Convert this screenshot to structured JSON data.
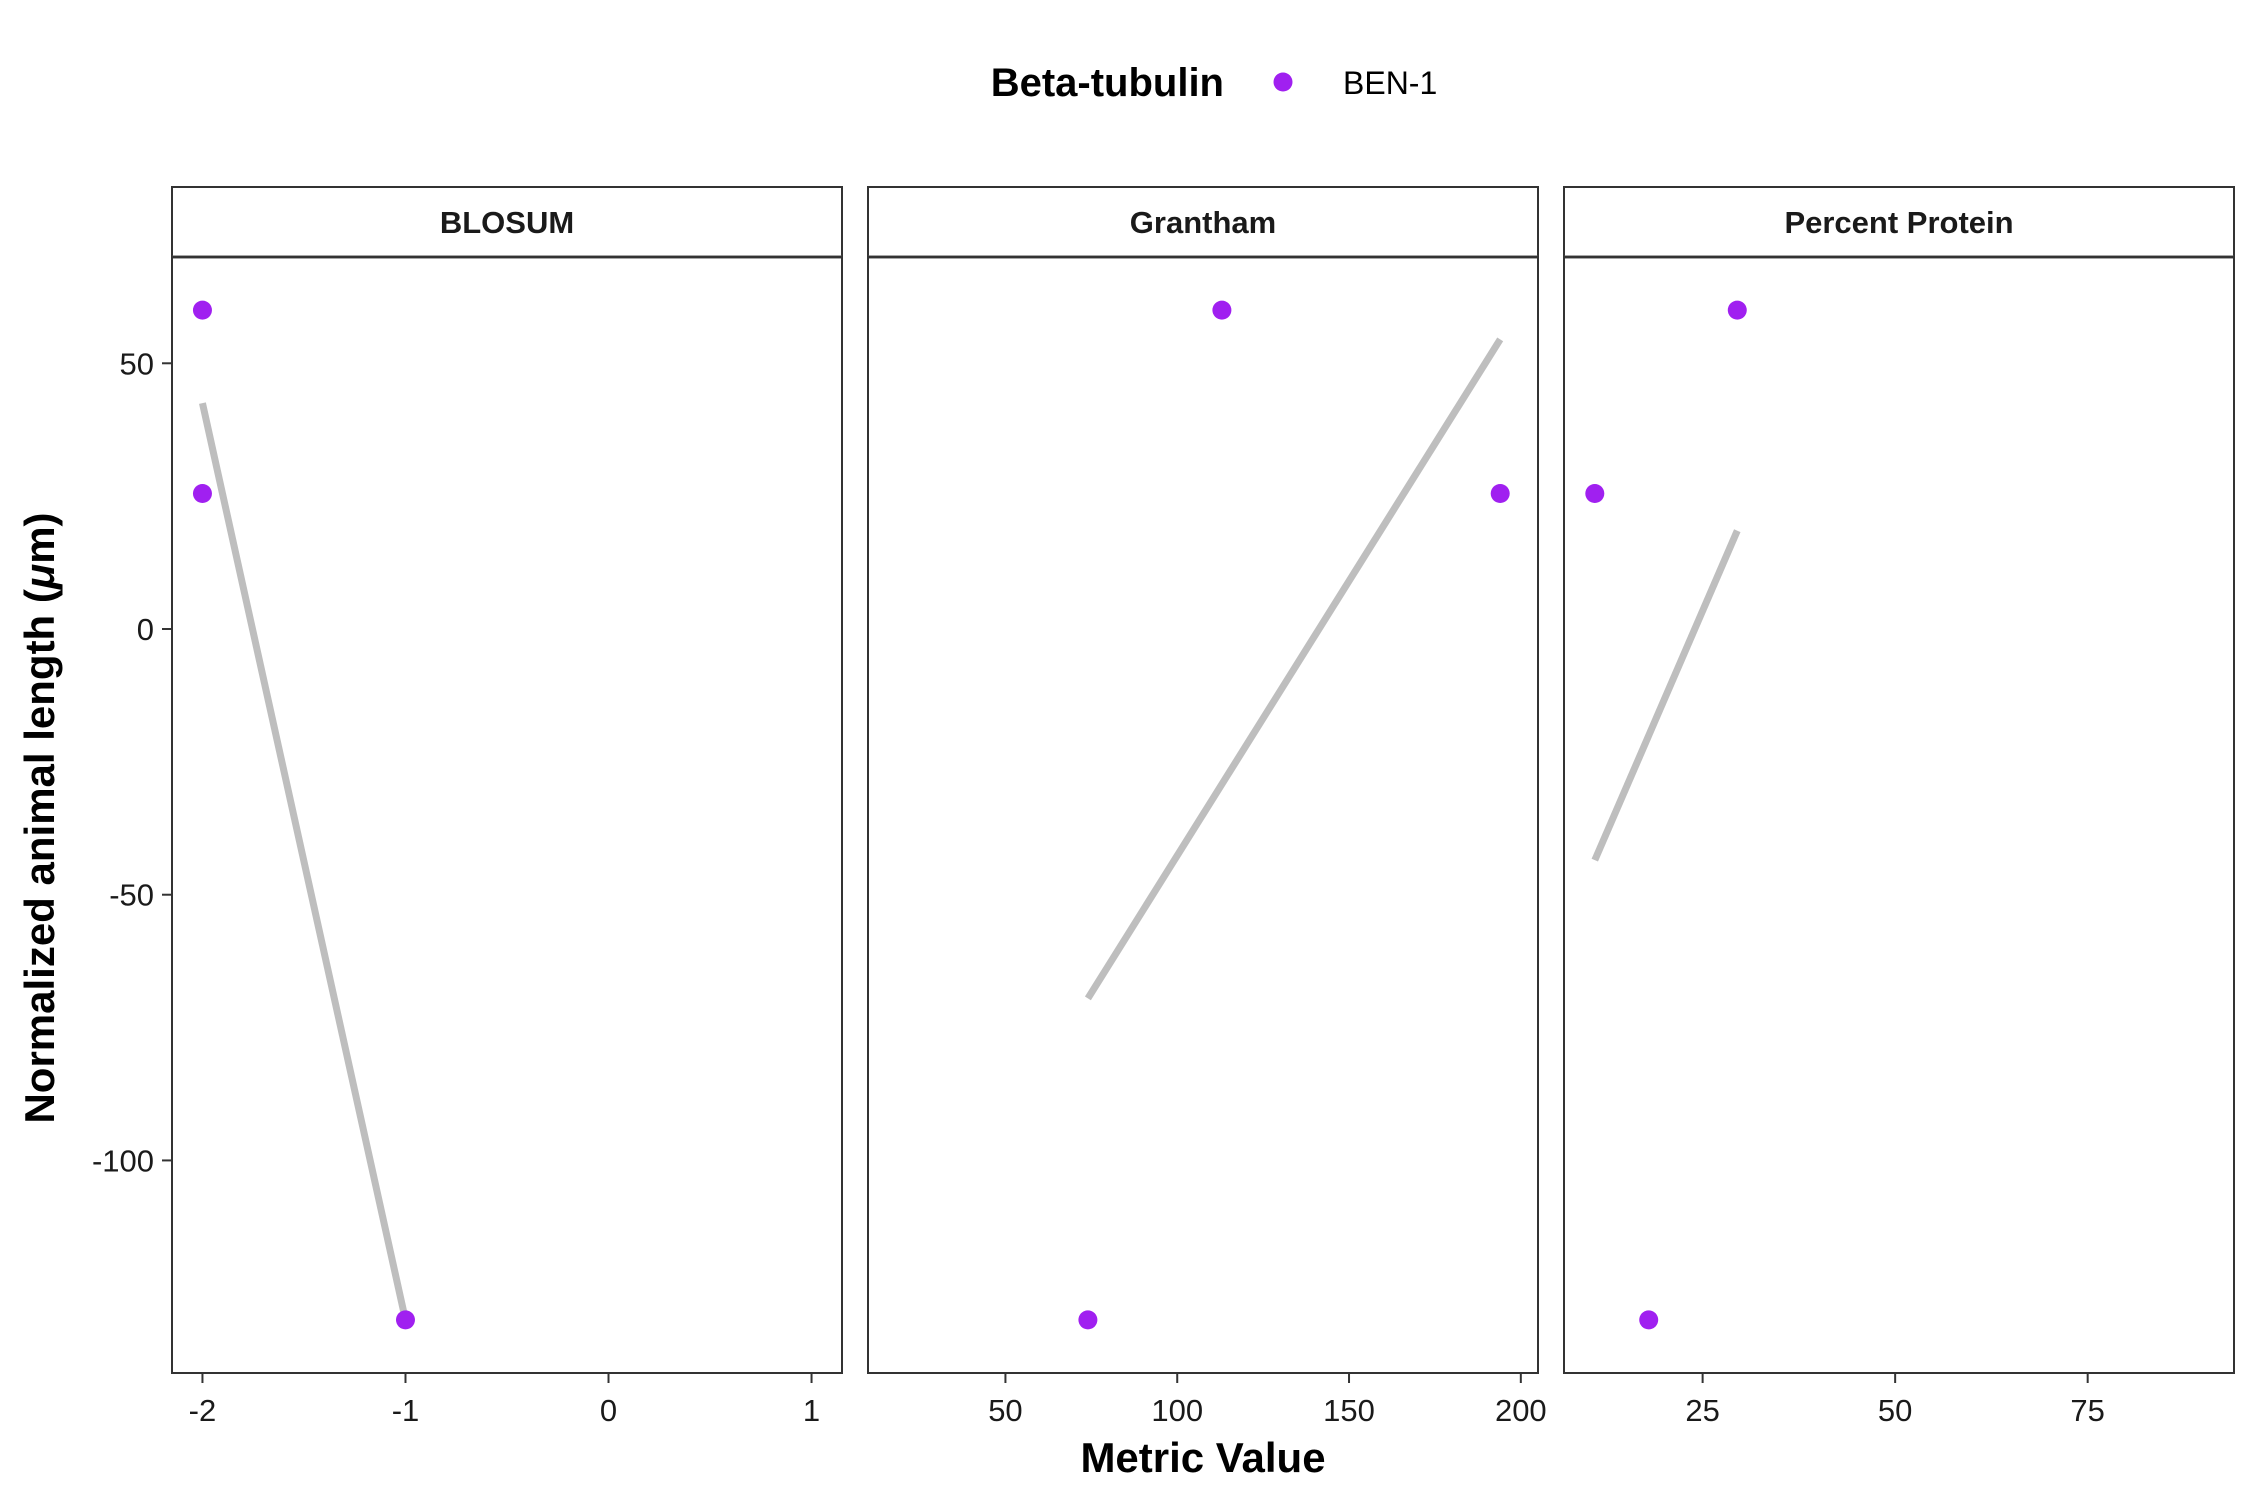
{
  "legend": {
    "title": "Beta-tubulin",
    "items": [
      {
        "label": "BEN-1",
        "color": "#A020F0"
      }
    ]
  },
  "axes": {
    "xlabel": "Metric Value",
    "ylabel_main": "Normalized animal length (",
    "ylabel_mu": "μ",
    "ylabel_tail": "m)"
  },
  "chart_data": {
    "type": "scatter",
    "facet_wrap": "metric",
    "shared_y": true,
    "xlabel": "Metric Value",
    "ylabel": "Normalized animal length (μm)",
    "ylim": [
      -140,
      70
    ],
    "y_ticks": [
      50,
      0,
      -50,
      -100
    ],
    "point_color": "#A020F0",
    "fit_line_color": "#BEBEBE",
    "legend_position": "top",
    "series": [
      {
        "name": "BEN-1"
      }
    ],
    "panels": [
      {
        "title": "BLOSUM",
        "xlim": [
          -2.15,
          1.15
        ],
        "x_ticks": [
          -2,
          -1,
          0,
          1
        ],
        "x_tick_labels": [
          "-2",
          "-1",
          "0",
          "1"
        ],
        "points": [
          {
            "x": -2,
            "y": 60
          },
          {
            "x": -2,
            "y": 25.5
          },
          {
            "x": -1,
            "y": -130
          }
        ],
        "fit_line": [
          {
            "x": -2,
            "y": 42.5
          },
          {
            "x": -1,
            "y": -130
          }
        ]
      },
      {
        "title": "Grantham",
        "xlim": [
          10,
          205
        ],
        "x_ticks": [
          50,
          100,
          150,
          200
        ],
        "x_tick_labels": [
          "50",
          "100",
          "150",
          "200"
        ],
        "points": [
          {
            "x": 74,
            "y": -130
          },
          {
            "x": 113,
            "y": 60
          },
          {
            "x": 194,
            "y": 25.5
          }
        ],
        "fit_line": [
          {
            "x": 74,
            "y": -69.5
          },
          {
            "x": 194,
            "y": 54.5
          }
        ]
      },
      {
        "title": "Percent Protein",
        "xlim": [
          7,
          94
        ],
        "x_ticks": [
          25,
          50,
          75
        ],
        "x_tick_labels": [
          "25",
          "50",
          "75"
        ],
        "points": [
          {
            "x": 11,
            "y": 25.5
          },
          {
            "x": 18,
            "y": -130
          },
          {
            "x": 29.5,
            "y": 60
          }
        ],
        "fit_line": [
          {
            "x": 11,
            "y": -43.5
          },
          {
            "x": 29.5,
            "y": 18.5
          }
        ]
      }
    ]
  }
}
